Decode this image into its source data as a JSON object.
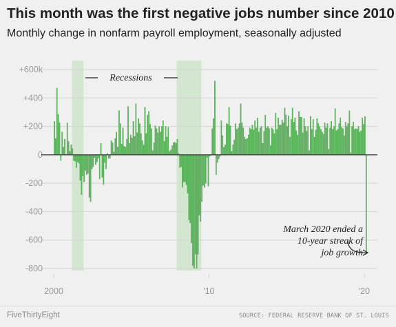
{
  "header": {
    "title": "This month was the first negative jobs number since 2010",
    "subtitle": "Monthly change in nonfarm payroll employment, seasonally adjusted"
  },
  "footer": {
    "brand": "FiveThirtyEight",
    "source": "SOURCE: FEDERAL RESERVE BANK OF ST. LOUIS"
  },
  "colors": {
    "background": "#f0f0f0",
    "bar": "#5cb85c",
    "bar_dark": "#3f9a3f",
    "recession": "#d2e6d0",
    "grid": "#d4d4d4",
    "zero_line": "#333333"
  },
  "chart_data": {
    "type": "bar",
    "title": "This month was the first negative jobs number since 2010",
    "subtitle": "Monthly change in nonfarm payroll employment, seasonally adjusted",
    "xlabel": "",
    "ylabel": "",
    "ylim": [
      -800,
      600
    ],
    "grid": true,
    "y_ticks": [
      {
        "value": 600,
        "label": "+600k"
      },
      {
        "value": 400,
        "label": "+400"
      },
      {
        "value": 200,
        "label": "+200"
      },
      {
        "value": 0,
        "label": "0"
      },
      {
        "value": -200,
        "label": "-200"
      },
      {
        "value": -400,
        "label": "-400"
      },
      {
        "value": -600,
        "label": "-600"
      },
      {
        "value": -800,
        "label": "-800"
      }
    ],
    "x_ticks": [
      {
        "year": 2000,
        "label": "2000"
      },
      {
        "year": 2010,
        "label": "'10"
      },
      {
        "year": 2020,
        "label": "'20"
      }
    ],
    "recessions": [
      {
        "start": "2001-03",
        "end": "2001-11"
      },
      {
        "start": "2007-12",
        "end": "2009-06"
      }
    ],
    "recession_label": "Recessions",
    "annotation": [
      "March 2020 ended a",
      "10-year streak of",
      "job growth"
    ],
    "start": "2000-01",
    "values": [
      235,
      115,
      470,
      285,
      225,
      -40,
      160,
      55,
      110,
      0,
      225,
      95,
      25,
      70,
      45,
      -40,
      -45,
      -90,
      -50,
      -60,
      -180,
      -280,
      -150,
      -190,
      -110,
      -140,
      -130,
      -300,
      -330,
      -100,
      -85,
      -20,
      -70,
      -50,
      -25,
      -170,
      80,
      -160,
      -210,
      -55,
      -100,
      10,
      -25,
      -25,
      100,
      85,
      20,
      115,
      160,
      55,
      310,
      220,
      75,
      190,
      60,
      55,
      110,
      340,
      80,
      140,
      120,
      235,
      130,
      360,
      155,
      255,
      220,
      150,
      100,
      70,
      335,
      150,
      280,
      305,
      215,
      185,
      30,
      85,
      205,
      185,
      155,
      200,
      160,
      200,
      240,
      95,
      200,
      125,
      195,
      25,
      35,
      65,
      85,
      90,
      80,
      110,
      10,
      -90,
      -85,
      -230,
      -190,
      -190,
      -210,
      -270,
      -460,
      -480,
      -620,
      -780,
      -800,
      -700,
      -800,
      -700,
      -425,
      -470,
      -330,
      -215,
      -230,
      -200,
      -20,
      -220,
      -10,
      -5,
      185,
      255,
      520,
      -140,
      -55,
      -30,
      -10,
      240,
      135,
      55
    ],
    "values_2011_2020": [
      70,
      220,
      215,
      335,
      205,
      25,
      70,
      105,
      220,
      180,
      190,
      220,
      360,
      225,
      190,
      125,
      110,
      115,
      140,
      190,
      180,
      210,
      175,
      240,
      190,
      260,
      160,
      190,
      200,
      80,
      165,
      280,
      190,
      200,
      185,
      65,
      190,
      180,
      150,
      295,
      180,
      260,
      210,
      210,
      245,
      225,
      330,
      280,
      200,
      275,
      125,
      250,
      330,
      230,
      260,
      170,
      140,
      305,
      265,
      265,
      155,
      255,
      200,
      165,
      200,
      30,
      270,
      180,
      250,
      125,
      175,
      255,
      220,
      200,
      180,
      160,
      145,
      225,
      190,
      220,
      40,
      190,
      235,
      180,
      200,
      325,
      170,
      180,
      220,
      260,
      195,
      185,
      135,
      230,
      200,
      220,
      310,
      15,
      200,
      230,
      180,
      185,
      180,
      200,
      160,
      170,
      260,
      215,
      270,
      -700
    ],
    "highlight": {
      "date": "2020-03",
      "value": -701
    }
  }
}
